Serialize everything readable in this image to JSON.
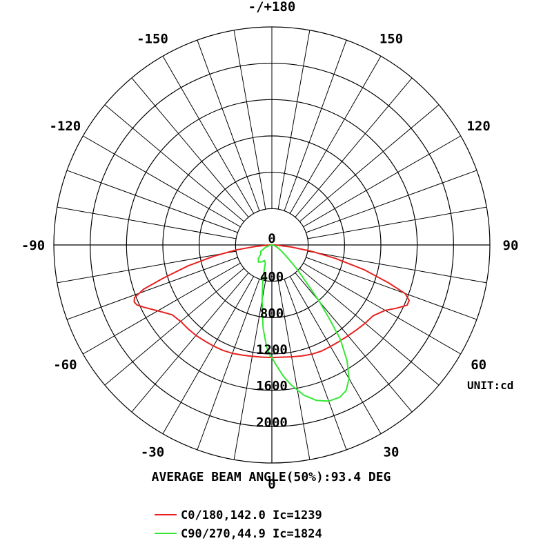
{
  "chart_data": {
    "type": "polar",
    "title": "",
    "unit_label": "UNIT:cd",
    "beam_angle_label": "AVERAGE BEAM ANGLE(50%):93.4 DEG",
    "radial_max": 2400,
    "radial_ticks": [
      0,
      400,
      800,
      1200,
      1600,
      2000
    ],
    "radial_tick_labels": [
      "0",
      "400",
      "800",
      "1200",
      "1600",
      "2000"
    ],
    "angle_step": 10,
    "angle_labels": [
      {
        "angle": 0,
        "text": "0"
      },
      {
        "angle": 30,
        "text": "30"
      },
      {
        "angle": 60,
        "text": "60"
      },
      {
        "angle": 90,
        "text": "90"
      },
      {
        "angle": 120,
        "text": "120"
      },
      {
        "angle": 150,
        "text": "150"
      },
      {
        "angle": 180,
        "text": "-/+180"
      },
      {
        "angle": -150,
        "text": "-150"
      },
      {
        "angle": -120,
        "text": "-120"
      },
      {
        "angle": -90,
        "text": "-90"
      },
      {
        "angle": -60,
        "text": "-60"
      },
      {
        "angle": -30,
        "text": "-30"
      }
    ],
    "grid": true,
    "legend_position": "bottom",
    "series": [
      {
        "name": "C0/180,142.0 Ic=1239",
        "color": "#e8211f",
        "points": [
          [
            -88,
            40
          ],
          [
            -85,
            180
          ],
          [
            -82,
            400
          ],
          [
            -79,
            650
          ],
          [
            -76,
            950
          ],
          [
            -73,
            1250
          ],
          [
            -71,
            1490
          ],
          [
            -69,
            1620
          ],
          [
            -67.5,
            1640
          ],
          [
            -66,
            1625
          ],
          [
            -64,
            1565
          ],
          [
            -60,
            1450
          ],
          [
            -55,
            1340
          ],
          [
            -50,
            1310
          ],
          [
            -45,
            1305
          ],
          [
            -40,
            1300
          ],
          [
            -35,
            1290
          ],
          [
            -30,
            1285
          ],
          [
            -25,
            1280
          ],
          [
            -20,
            1270
          ],
          [
            -15,
            1255
          ],
          [
            -10,
            1245
          ],
          [
            -5,
            1240
          ],
          [
            0,
            1239
          ],
          [
            5,
            1240
          ],
          [
            10,
            1250
          ],
          [
            15,
            1265
          ],
          [
            20,
            1280
          ],
          [
            25,
            1290
          ],
          [
            30,
            1290
          ],
          [
            35,
            1295
          ],
          [
            40,
            1305
          ],
          [
            45,
            1320
          ],
          [
            50,
            1340
          ],
          [
            55,
            1360
          ],
          [
            60,
            1440
          ],
          [
            63,
            1535
          ],
          [
            66,
            1630
          ],
          [
            68,
            1630
          ],
          [
            70,
            1560
          ],
          [
            72,
            1350
          ],
          [
            75,
            1050
          ],
          [
            78,
            720
          ],
          [
            81,
            440
          ],
          [
            84,
            210
          ],
          [
            87,
            60
          ],
          [
            89,
            10
          ]
        ]
      },
      {
        "name": "C90/270,44.9 Ic=1824",
        "color": "#33e833",
        "points": [
          [
            -80,
            20
          ],
          [
            -70,
            70
          ],
          [
            -60,
            140
          ],
          [
            -50,
            160
          ],
          [
            -45,
            210
          ],
          [
            -38,
            240
          ],
          [
            -32,
            220
          ],
          [
            -25,
            190
          ],
          [
            -20,
            210
          ],
          [
            -15,
            380
          ],
          [
            -10,
            620
          ],
          [
            -6,
            920
          ],
          [
            -3,
            1120
          ],
          [
            -1,
            1220
          ],
          [
            0,
            1239
          ],
          [
            2,
            1320
          ],
          [
            5,
            1450
          ],
          [
            8,
            1560
          ],
          [
            12,
            1690
          ],
          [
            16,
            1780
          ],
          [
            20,
            1830
          ],
          [
            24,
            1835
          ],
          [
            27,
            1800
          ],
          [
            30,
            1700
          ],
          [
            33,
            1520
          ],
          [
            36,
            1280
          ],
          [
            38,
            1020
          ],
          [
            40,
            820
          ],
          [
            42,
            600
          ],
          [
            44,
            480
          ],
          [
            46,
            390
          ],
          [
            48,
            300
          ],
          [
            52,
            200
          ],
          [
            58,
            120
          ],
          [
            65,
            70
          ],
          [
            75,
            30
          ],
          [
            85,
            10
          ]
        ]
      }
    ]
  }
}
